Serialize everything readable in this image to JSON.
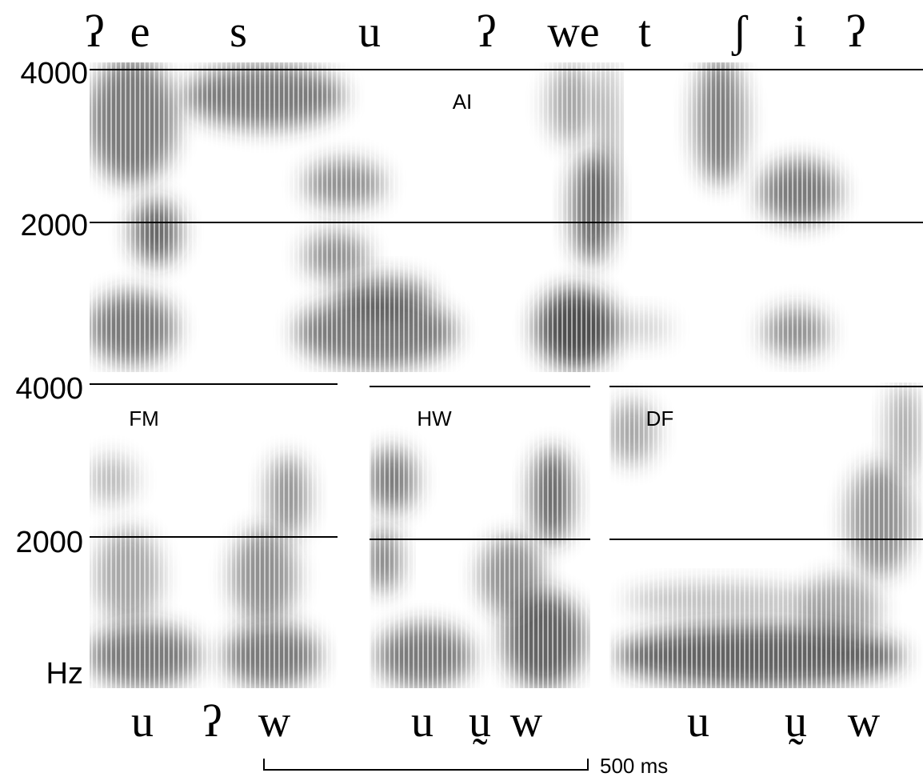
{
  "top_panel": {
    "speaker": "AI",
    "transcription": [
      "ʔ",
      "e",
      "s",
      "u",
      "ʔ",
      "we",
      "t",
      "ʃ",
      "i",
      "ʔ"
    ],
    "y_labels": [
      "4000",
      "2000"
    ]
  },
  "bottom_y_labels": [
    "4000",
    "2000",
    "Hz"
  ],
  "bottom_panels": [
    {
      "speaker": "FM",
      "transcription": [
        "u",
        "ʔ",
        "w"
      ]
    },
    {
      "speaker": "HW",
      "transcription": [
        "u",
        "ṵ",
        "w"
      ]
    },
    {
      "speaker": "DF",
      "transcription": [
        "u",
        "ṵ",
        "w"
      ]
    }
  ],
  "scale_bar": "500 ms"
}
